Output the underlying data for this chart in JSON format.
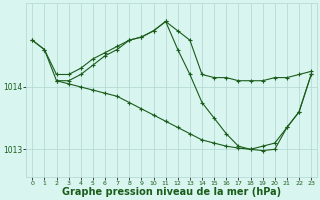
{
  "bg_color": "#d8f5f0",
  "grid_color": "#b0d8d0",
  "line_color": "#1a5c1a",
  "xlabel": "Graphe pression niveau de la mer (hPa)",
  "xlabel_fontsize": 7,
  "yticks": [
    1013,
    1014
  ],
  "ylim": [
    1012.55,
    1015.35
  ],
  "xlim": [
    -0.5,
    23.5
  ],
  "xticks": [
    0,
    1,
    2,
    3,
    4,
    5,
    6,
    7,
    8,
    9,
    10,
    11,
    12,
    13,
    14,
    15,
    16,
    17,
    18,
    19,
    20,
    21,
    22,
    23
  ],
  "series": [
    {
      "x": [
        0,
        1,
        2,
        3,
        4,
        5,
        6,
        7,
        8,
        9,
        10,
        11,
        12,
        13,
        14,
        15,
        16,
        17,
        18,
        19,
        20,
        21,
        22,
        23
      ],
      "y": [
        1014.75,
        1014.6,
        1014.2,
        1014.2,
        1014.3,
        1014.45,
        1014.55,
        1014.65,
        1014.75,
        1014.8,
        1014.9,
        1015.05,
        1014.9,
        1014.75,
        1014.2,
        1014.15,
        1014.15,
        1014.1,
        1014.1,
        1014.1,
        1014.15,
        1014.15,
        1014.2,
        1014.25
      ]
    },
    {
      "x": [
        0,
        1,
        2,
        3,
        4,
        5,
        6,
        7,
        8,
        9,
        10,
        11,
        12,
        13,
        14,
        15,
        16,
        17,
        18,
        19,
        20,
        21,
        22,
        23
      ],
      "y": [
        1014.75,
        1014.6,
        1014.1,
        1014.1,
        1014.2,
        1014.35,
        1014.5,
        1014.6,
        1014.75,
        1014.8,
        1014.9,
        1015.05,
        1014.6,
        1014.2,
        1013.75,
        1013.5,
        1013.25,
        1013.05,
        1013.0,
        1013.05,
        1013.1,
        1013.35,
        1013.6,
        1014.2
      ]
    },
    {
      "x": [
        2,
        3,
        4,
        5,
        6,
        7,
        8,
        9,
        10,
        11,
        12,
        13,
        14,
        15,
        16,
        17,
        18,
        19,
        20,
        21,
        22,
        23
      ],
      "y": [
        1014.1,
        1014.05,
        1014.0,
        1013.95,
        1013.9,
        1013.85,
        1013.75,
        1013.65,
        1013.55,
        1013.45,
        1013.35,
        1013.25,
        1013.15,
        1013.1,
        1013.05,
        1013.02,
        1013.0,
        1012.98,
        1013.0,
        1013.35,
        1013.6,
        1014.2
      ]
    }
  ]
}
